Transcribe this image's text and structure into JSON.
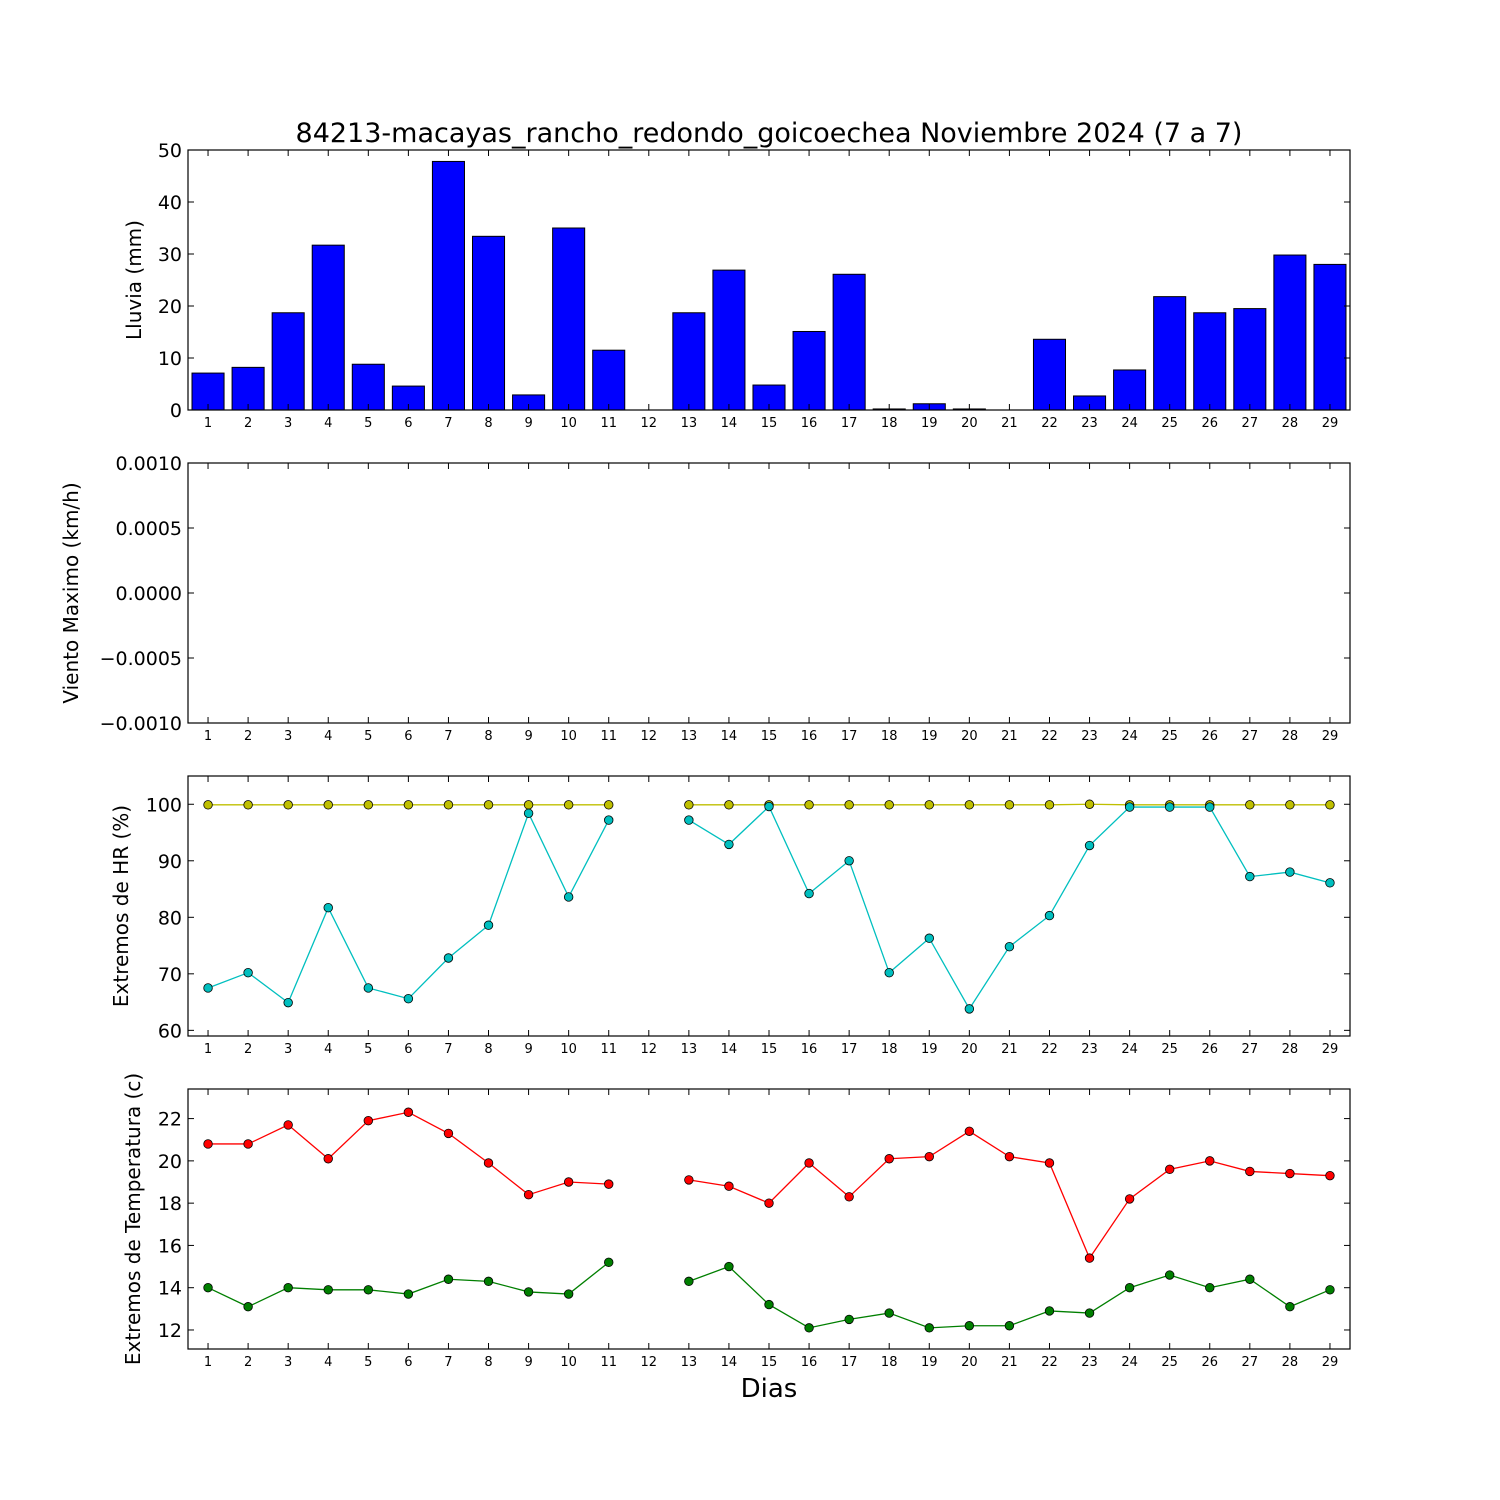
{
  "chart_data": [
    {
      "id": "lluvia",
      "type": "bar",
      "title": "84213-macayas_rancho_redondo_goicoechea Noviembre 2024  (7 a 7)",
      "ylabel": "Lluvia (mm)",
      "xlabel": "",
      "ylim": [
        0,
        50
      ],
      "yticks": [
        "0",
        "10",
        "20",
        "30",
        "40",
        "50"
      ],
      "yticks_values": [
        0,
        10,
        20,
        30,
        40,
        50
      ],
      "categories": [
        1,
        2,
        3,
        4,
        5,
        6,
        7,
        8,
        9,
        10,
        11,
        12,
        13,
        14,
        15,
        16,
        17,
        18,
        19,
        20,
        21,
        22,
        23,
        24,
        25,
        26,
        27,
        28,
        29
      ],
      "values": [
        7.1,
        8.2,
        18.7,
        31.7,
        8.8,
        4.6,
        47.8,
        33.4,
        2.9,
        35.0,
        11.5,
        0,
        18.7,
        26.9,
        4.8,
        15.1,
        26.1,
        0.2,
        1.2,
        0.2,
        0,
        13.6,
        2.7,
        7.7,
        21.8,
        18.7,
        19.5,
        29.8,
        28.0
      ],
      "bar_color": "#0000ff"
    },
    {
      "id": "viento",
      "type": "line",
      "ylabel": "Viento Maximo (km/h)",
      "xlabel": "",
      "ylim": [
        -0.001,
        0.001
      ],
      "yticks": [
        "−0.0010",
        "−0.0005",
        "0.0000",
        "0.0005",
        "0.0010"
      ],
      "yticks_values": [
        -0.001,
        -0.0005,
        0,
        0.0005,
        0.001
      ],
      "categories": [
        1,
        2,
        3,
        4,
        5,
        6,
        7,
        8,
        9,
        10,
        11,
        12,
        13,
        14,
        15,
        16,
        17,
        18,
        19,
        20,
        21,
        22,
        23,
        24,
        25,
        26,
        27,
        28,
        29
      ],
      "series": []
    },
    {
      "id": "hr",
      "type": "line",
      "ylabel": "Extremos de HR (%)",
      "xlabel": "",
      "ylim": [
        59,
        105
      ],
      "yticks": [
        "60",
        "70",
        "80",
        "90",
        "100"
      ],
      "yticks_values": [
        60,
        70,
        80,
        90,
        100
      ],
      "categories": [
        1,
        2,
        3,
        4,
        5,
        6,
        7,
        8,
        9,
        10,
        11,
        12,
        13,
        14,
        15,
        16,
        17,
        18,
        19,
        20,
        21,
        22,
        23,
        24,
        25,
        26,
        27,
        28,
        29
      ],
      "series": [
        {
          "color": "#bfbf00",
          "values": [
            99.9,
            99.9,
            99.9,
            99.9,
            99.9,
            99.9,
            99.9,
            99.9,
            99.9,
            99.9,
            99.9,
            null,
            99.9,
            99.9,
            99.9,
            99.9,
            99.9,
            99.9,
            99.9,
            99.9,
            99.9,
            99.9,
            100.0,
            99.9,
            99.9,
            99.9,
            99.9,
            99.9,
            99.9
          ]
        },
        {
          "color": "#00bfbf",
          "values": [
            67.5,
            70.2,
            64.9,
            81.7,
            67.5,
            65.6,
            72.8,
            78.6,
            98.4,
            83.6,
            97.2,
            null,
            97.2,
            92.9,
            99.6,
            84.2,
            90.0,
            70.2,
            76.3,
            63.8,
            74.8,
            80.3,
            92.7,
            99.5,
            99.5,
            99.5,
            87.2,
            88.0,
            86.1
          ]
        }
      ]
    },
    {
      "id": "temperatura",
      "type": "line",
      "ylabel": "Extremos de Temperatura (c)",
      "xlabel": "Dias",
      "ylim": [
        11.1,
        23.4
      ],
      "yticks": [
        "12",
        "14",
        "16",
        "18",
        "20",
        "22"
      ],
      "yticks_values": [
        12,
        14,
        16,
        18,
        20,
        22
      ],
      "categories": [
        1,
        2,
        3,
        4,
        5,
        6,
        7,
        8,
        9,
        10,
        11,
        12,
        13,
        14,
        15,
        16,
        17,
        18,
        19,
        20,
        21,
        22,
        23,
        24,
        25,
        26,
        27,
        28,
        29
      ],
      "series": [
        {
          "color": "#ff0000",
          "values": [
            20.8,
            20.8,
            21.7,
            20.1,
            21.9,
            22.3,
            21.3,
            19.9,
            18.4,
            19.0,
            18.9,
            null,
            19.1,
            18.8,
            18.0,
            19.9,
            18.3,
            20.1,
            20.2,
            21.4,
            20.2,
            19.9,
            15.4,
            18.2,
            19.6,
            20.0,
            19.5,
            19.4,
            19.3
          ]
        },
        {
          "color": "#007f00",
          "values": [
            14.0,
            13.1,
            14.0,
            13.9,
            13.9,
            13.7,
            14.4,
            14.3,
            13.8,
            13.7,
            15.2,
            null,
            14.3,
            15.0,
            13.2,
            12.1,
            12.5,
            12.8,
            12.1,
            12.2,
            12.2,
            12.9,
            12.8,
            14.0,
            14.6,
            14.0,
            14.4,
            13.1,
            13.9
          ]
        }
      ]
    }
  ]
}
